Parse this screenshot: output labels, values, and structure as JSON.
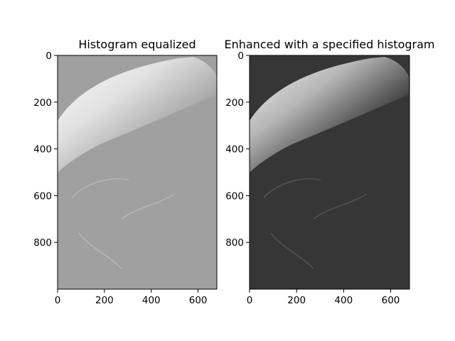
{
  "chart_data": [
    {
      "type": "image",
      "title": "Histogram equalized",
      "color": "#a0a0a0",
      "xlim": [
        0,
        680
      ],
      "ylim": [
        1000,
        0
      ],
      "xticks": [
        0,
        200,
        400,
        600
      ],
      "yticks": [
        0,
        200,
        400,
        600,
        800
      ]
    },
    {
      "type": "image",
      "title": "Enhanced with a specified histogram",
      "color": "#363636",
      "xlim": [
        0,
        680
      ],
      "ylim": [
        1000,
        0
      ],
      "xticks": [
        0,
        200,
        400,
        600
      ],
      "yticks": [
        0,
        200,
        400,
        600,
        800
      ]
    }
  ]
}
